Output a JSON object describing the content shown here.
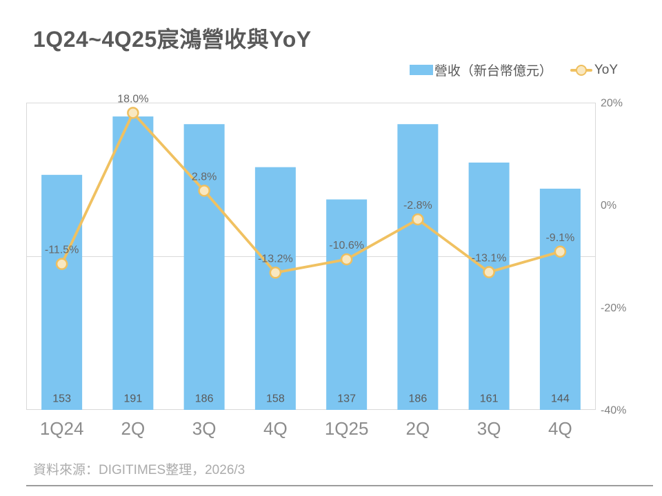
{
  "title": "1Q24~4Q25宸鴻營收與YoY",
  "legend": [
    {
      "label": "營收（新台幣億元）",
      "marker": "bar-swatch"
    },
    {
      "label": "YoY",
      "marker": "line-circle"
    }
  ],
  "footer": {
    "source": "資料來源：DIGITIMES整理，2026/3"
  },
  "colors": {
    "bar": "#7CC5F1",
    "line": "#F0C161",
    "marker_fill": "#F9E8C1",
    "marker_stroke": "#EFBF5E",
    "title_text": "#595959",
    "data_label": "#666666",
    "bar_value_label": "#595959",
    "axis_tick_label": "#808080",
    "category_label": "#8C8C8C",
    "gridline": "#D9D9D9",
    "footer_text": "#ABABAB",
    "divider": "#9C9C9C"
  },
  "chart_data": {
    "type": "combo",
    "title": "1Q24~4Q25宸鴻營收與YoY",
    "categories": [
      "1Q24",
      "2Q",
      "3Q",
      "4Q",
      "1Q25",
      "2Q",
      "3Q",
      "4Q"
    ],
    "series": [
      {
        "name": "營收（新台幣億元）",
        "type": "bar",
        "axis": "left",
        "values": [
          153,
          191,
          186,
          158,
          137,
          186,
          161,
          144
        ],
        "data_labels": [
          "153",
          "191",
          "186",
          "158",
          "137",
          "186",
          "161",
          "144"
        ]
      },
      {
        "name": "YoY",
        "type": "line",
        "axis": "right",
        "values": [
          -11.5,
          18.0,
          2.8,
          -13.2,
          -10.6,
          -2.8,
          -13.1,
          -9.1
        ],
        "data_labels": [
          "-11.5%",
          "18.0%",
          "2.8%",
          "-13.2%",
          "-10.6%",
          "-2.8%",
          "-13.1%",
          "-9.1%"
        ]
      }
    ],
    "left_axis": {
      "min": 0,
      "max": 200,
      "labels_visible": false
    },
    "right_axis": {
      "min": -40,
      "max": 20,
      "ticks": [
        20,
        0,
        -20,
        -40
      ],
      "tick_labels": [
        "20%",
        "0%",
        "-20%",
        "-40%"
      ],
      "position": "right"
    },
    "gridline_values_right_axis": [
      20,
      -10
    ],
    "legend_position": "top-right",
    "plot_border": true
  }
}
